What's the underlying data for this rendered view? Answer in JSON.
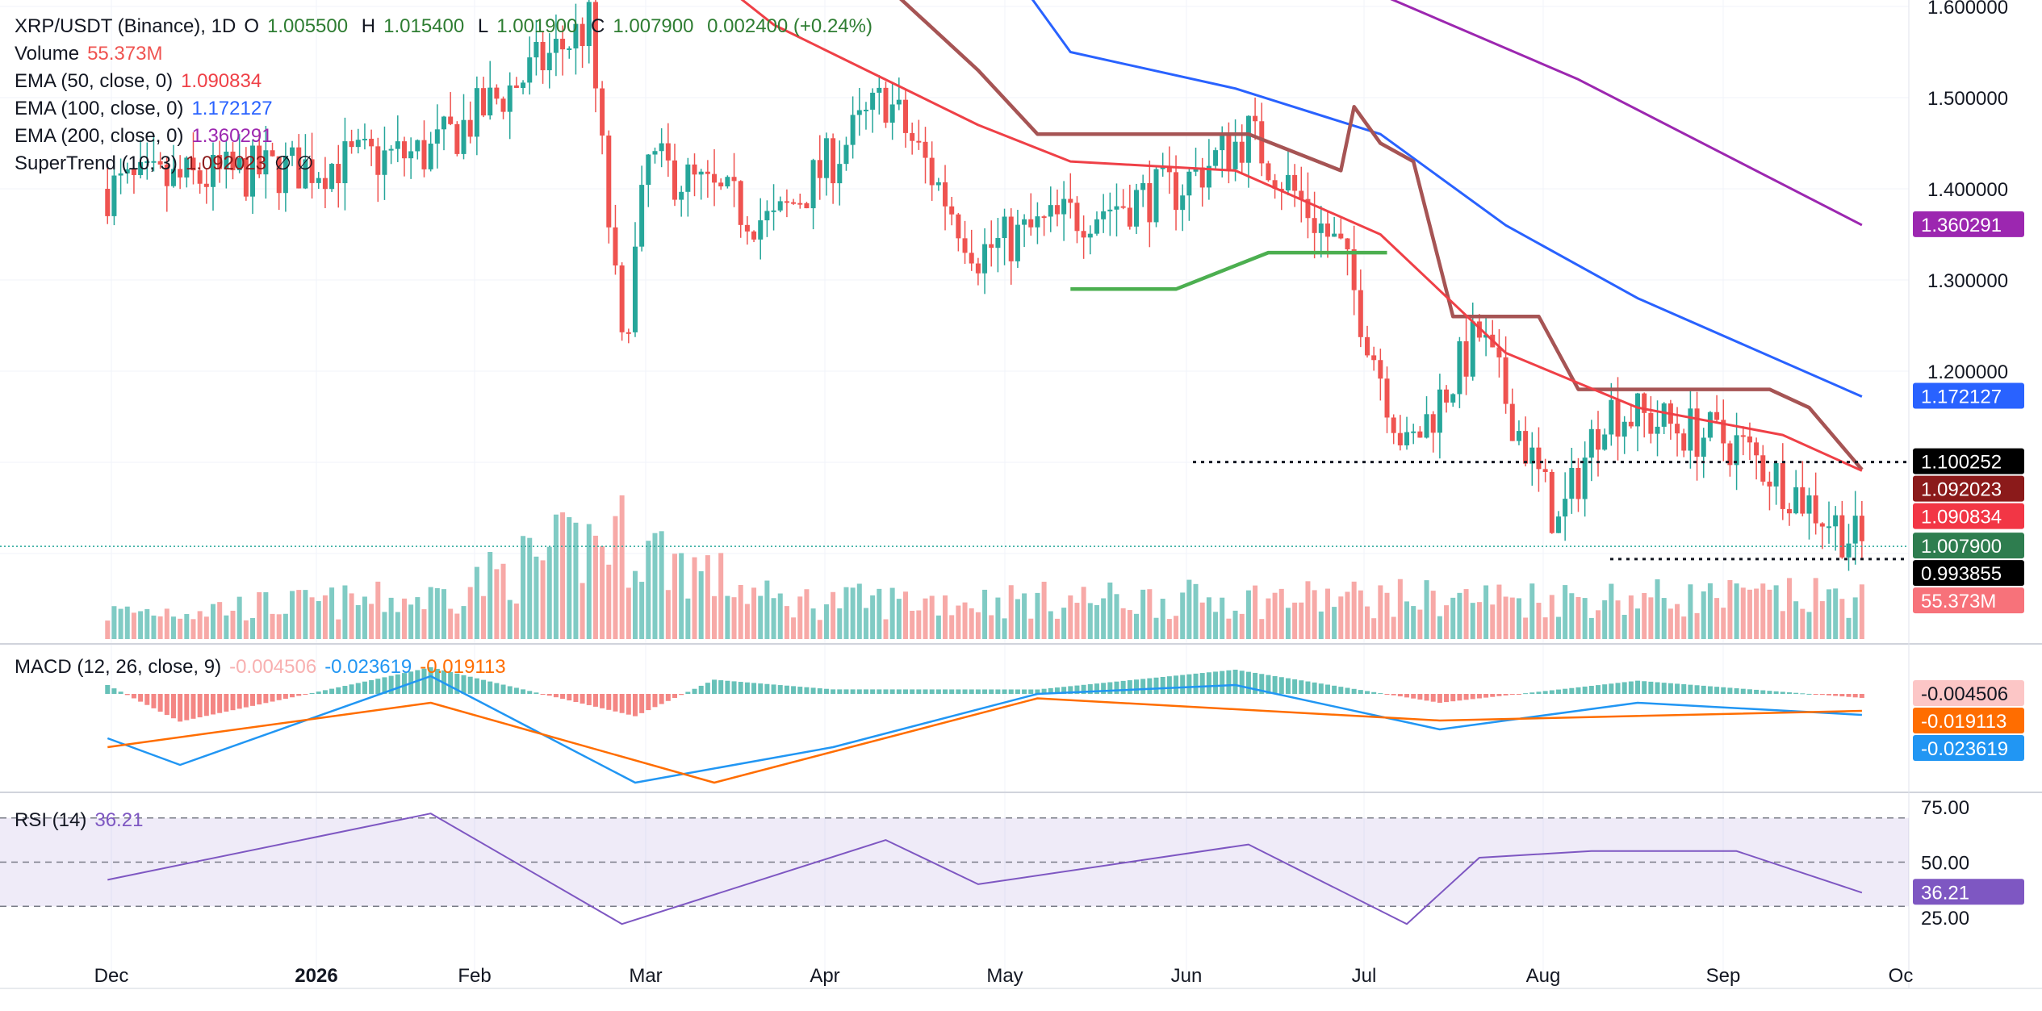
{
  "symbol_title": "XRP/USDT (Binance), 1D",
  "ohlc": {
    "o_label": "O",
    "o_value": "1.005500",
    "h_label": "H",
    "h_value": "1.015400",
    "l_label": "L",
    "l_value": "1.001900",
    "c_label": "C",
    "c_value": "1.007900",
    "change": "0.002400 (+0.24%)"
  },
  "indicators": {
    "volume": {
      "label": "Volume",
      "value": "55.373M"
    },
    "ema50": {
      "label": "EMA (50, close, 0)",
      "value": "1.090834"
    },
    "ema100": {
      "label": "EMA (100, close, 0)",
      "value": "1.172127"
    },
    "ema200": {
      "label": "EMA (200, close, 0)",
      "value": "1.360291"
    },
    "supertrend": {
      "label": "SuperTrend (10, 3)",
      "value": "1.092023",
      "extra": "∅ ∅"
    }
  },
  "macd": {
    "label": "MACD (12, 26, close, 9)",
    "hist": "-0.004506",
    "macd": "-0.023619",
    "signal": "-0.019113"
  },
  "rsi": {
    "label": "RSI (14)",
    "value": "36.21"
  },
  "colors": {
    "up": "#26a69a",
    "down": "#ef5350",
    "ohlc_text": "#2e7d32",
    "ema50": "#ef4047",
    "ema100": "#2962ff",
    "ema200": "#9c27b0",
    "supertrend_down": "#a65454",
    "supertrend_up": "#4caf50",
    "macd_line": "#2196f3",
    "signal_line": "#ff6d00",
    "rsi_line": "#7e57c2"
  },
  "chart_data": {
    "type": "candlestick",
    "x_labels": [
      "Dec",
      "2026",
      "Feb",
      "Mar",
      "Apr",
      "May",
      "Jun",
      "Jul",
      "Aug",
      "Sep",
      "Oc"
    ],
    "price_axis_ticks": [
      "1.600000",
      "1.500000",
      "1.400000",
      "1.300000",
      "1.200000"
    ],
    "price_ylim": [
      0.94,
      1.61
    ],
    "last_values": {
      "ema200": "1.360291",
      "ema100": "1.172127",
      "mark": "1.100252",
      "supertrend": "1.092023",
      "ema50": "1.090834",
      "close": "1.007900",
      "mark_low": "0.993855",
      "volume": "55.373M"
    },
    "price_path": [
      {
        "date": "2025-11-20",
        "v": 1.4
      },
      {
        "date": "2025-12-15",
        "v": 1.42
      },
      {
        "date": "2026-01-08",
        "v": 1.44
      },
      {
        "date": "2026-02-01",
        "v": 1.58
      },
      {
        "date": "2026-02-06",
        "v": 1.22
      },
      {
        "date": "2026-02-10",
        "v": 1.43
      },
      {
        "date": "2026-03-01",
        "v": 1.36
      },
      {
        "date": "2026-03-18",
        "v": 1.5
      },
      {
        "date": "2026-04-01",
        "v": 1.33
      },
      {
        "date": "2026-04-15",
        "v": 1.37
      },
      {
        "date": "2026-05-01",
        "v": 1.4
      },
      {
        "date": "2026-05-12",
        "v": 1.46
      },
      {
        "date": "2026-05-26",
        "v": 1.33
      },
      {
        "date": "2026-06-05",
        "v": 1.11
      },
      {
        "date": "2026-06-16",
        "v": 1.24
      },
      {
        "date": "2026-06-28",
        "v": 1.03
      },
      {
        "date": "2026-07-05",
        "v": 1.16
      },
      {
        "date": "2026-07-25",
        "v": 1.12
      },
      {
        "date": "2026-08-13",
        "v": 1.008
      }
    ],
    "ema50_path": [
      {
        "date": "2026-02-22",
        "v": 1.62
      },
      {
        "date": "2026-03-01",
        "v": 1.58
      },
      {
        "date": "2026-04-01",
        "v": 1.47
      },
      {
        "date": "2026-04-15",
        "v": 1.43
      },
      {
        "date": "2026-05-10",
        "v": 1.42
      },
      {
        "date": "2026-06-01",
        "v": 1.35
      },
      {
        "date": "2026-06-20",
        "v": 1.22
      },
      {
        "date": "2026-07-10",
        "v": 1.16
      },
      {
        "date": "2026-08-01",
        "v": 1.13
      },
      {
        "date": "2026-08-13",
        "v": 1.0908
      }
    ],
    "ema100_path": [
      {
        "date": "2026-04-08",
        "v": 1.62
      },
      {
        "date": "2026-04-15",
        "v": 1.55
      },
      {
        "date": "2026-05-10",
        "v": 1.51
      },
      {
        "date": "2026-06-01",
        "v": 1.46
      },
      {
        "date": "2026-06-20",
        "v": 1.36
      },
      {
        "date": "2026-07-10",
        "v": 1.28
      },
      {
        "date": "2026-08-13",
        "v": 1.1721
      }
    ],
    "ema200_path": [
      {
        "date": "2026-06-02",
        "v": 1.61
      },
      {
        "date": "2026-07-01",
        "v": 1.52
      },
      {
        "date": "2026-08-13",
        "v": 1.3603
      }
    ],
    "supertrend_down_path": [
      {
        "date": "2026-02-28",
        "v": 1.61
      },
      {
        "date": "2026-03-20",
        "v": 1.61
      },
      {
        "date": "2026-04-01",
        "v": 1.53
      },
      {
        "date": "2026-04-10",
        "v": 1.46
      },
      {
        "date": "2026-05-12",
        "v": 1.46
      },
      {
        "date": "2026-05-26",
        "v": 1.42
      },
      {
        "date": "2026-05-28",
        "v": 1.49
      },
      {
        "date": "2026-06-01",
        "v": 1.45
      },
      {
        "date": "2026-06-06",
        "v": 1.43
      },
      {
        "date": "2026-06-12",
        "v": 1.26
      },
      {
        "date": "2026-06-25",
        "v": 1.26
      },
      {
        "date": "2026-07-01",
        "v": 1.18
      },
      {
        "date": "2026-07-30",
        "v": 1.18
      },
      {
        "date": "2026-08-05",
        "v": 1.16
      },
      {
        "date": "2026-08-13",
        "v": 1.092
      }
    ],
    "supertrend_up_path": [
      {
        "date": "2026-04-15",
        "v": 1.29
      },
      {
        "date": "2026-05-01",
        "v": 1.29
      },
      {
        "date": "2026-05-15",
        "v": 1.33
      },
      {
        "date": "2026-06-02",
        "v": 1.33
      }
    ],
    "volume_path": [
      {
        "date": "2025-11-20",
        "v": 35
      },
      {
        "date": "2026-01-08",
        "v": 55
      },
      {
        "date": "2026-02-05",
        "v": 140
      },
      {
        "date": "2026-03-01",
        "v": 50
      },
      {
        "date": "2026-06-05",
        "v": 55
      },
      {
        "date": "2026-08-13",
        "v": 55.373
      }
    ],
    "macd_ticks": [
      "-0.004506",
      "-0.019113",
      "-0.023619"
    ],
    "macd_path": [
      {
        "date": "2025-11-20",
        "v": -0.05
      },
      {
        "date": "2025-12-01",
        "v": -0.08
      },
      {
        "date": "2026-01-08",
        "v": 0.02
      },
      {
        "date": "2026-02-08",
        "v": -0.1
      },
      {
        "date": "2026-03-10",
        "v": -0.06
      },
      {
        "date": "2026-04-10",
        "v": 0.0
      },
      {
        "date": "2026-05-10",
        "v": 0.01
      },
      {
        "date": "2026-06-10",
        "v": -0.04
      },
      {
        "date": "2026-07-10",
        "v": -0.01
      },
      {
        "date": "2026-08-13",
        "v": -0.0236
      }
    ],
    "signal_path": [
      {
        "date": "2025-11-20",
        "v": -0.06
      },
      {
        "date": "2026-01-08",
        "v": -0.01
      },
      {
        "date": "2026-02-20",
        "v": -0.1
      },
      {
        "date": "2026-04-10",
        "v": -0.005
      },
      {
        "date": "2026-06-10",
        "v": -0.03
      },
      {
        "date": "2026-08-13",
        "v": -0.0191
      }
    ],
    "rsi_ticks": [
      "75.00",
      "50.00",
      "25.00"
    ],
    "rsi_levels": [
      70,
      50,
      30
    ],
    "rsi_path": [
      {
        "date": "2025-11-20",
        "v": 42
      },
      {
        "date": "2026-01-08",
        "v": 72
      },
      {
        "date": "2026-02-06",
        "v": 22
      },
      {
        "date": "2026-03-18",
        "v": 60
      },
      {
        "date": "2026-04-01",
        "v": 40
      },
      {
        "date": "2026-05-12",
        "v": 58
      },
      {
        "date": "2026-06-05",
        "v": 22
      },
      {
        "date": "2026-06-16",
        "v": 52
      },
      {
        "date": "2026-07-03",
        "v": 55
      },
      {
        "date": "2026-07-25",
        "v": 55
      },
      {
        "date": "2026-08-13",
        "v": 36.21
      }
    ]
  }
}
